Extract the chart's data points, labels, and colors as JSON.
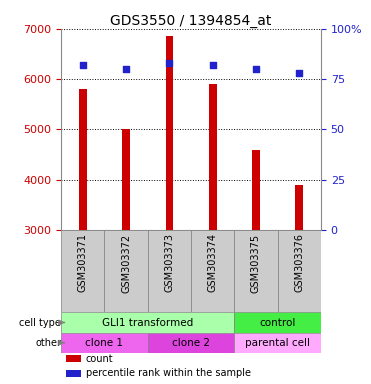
{
  "title": "GDS3550 / 1394854_at",
  "samples": [
    "GSM303371",
    "GSM303372",
    "GSM303373",
    "GSM303374",
    "GSM303375",
    "GSM303376"
  ],
  "counts": [
    5800,
    5000,
    6850,
    5900,
    4600,
    3900
  ],
  "percentiles": [
    82,
    80,
    83,
    82,
    80,
    78
  ],
  "ymin": 3000,
  "ymax": 7000,
  "yticks_left": [
    3000,
    4000,
    5000,
    6000,
    7000
  ],
  "yticks_right": [
    0,
    25,
    50,
    75,
    100
  ],
  "bar_color": "#cc0000",
  "dot_color": "#2222cc",
  "cell_type_row": {
    "label": "cell type",
    "groups": [
      {
        "text": "GLI1 transformed",
        "start": 0,
        "end": 4,
        "color": "#aaffaa"
      },
      {
        "text": "control",
        "start": 4,
        "end": 6,
        "color": "#44ee44"
      }
    ]
  },
  "other_row": {
    "label": "other",
    "groups": [
      {
        "text": "clone 1",
        "start": 0,
        "end": 2,
        "color": "#ee66ee"
      },
      {
        "text": "clone 2",
        "start": 2,
        "end": 4,
        "color": "#dd44dd"
      },
      {
        "text": "parental cell",
        "start": 4,
        "end": 6,
        "color": "#ffaaff"
      }
    ]
  },
  "legend_items": [
    {
      "color": "#cc0000",
      "label": "count"
    },
    {
      "color": "#2222cc",
      "label": "percentile rank within the sample"
    }
  ],
  "bar_width": 0.18,
  "plot_bg": "#ffffff",
  "tick_color_left": "#cc0000",
  "tick_color_right": "#2222cc",
  "xlabel_area_bg": "#cccccc",
  "grid_color": "#000000",
  "spine_color": "#888888"
}
